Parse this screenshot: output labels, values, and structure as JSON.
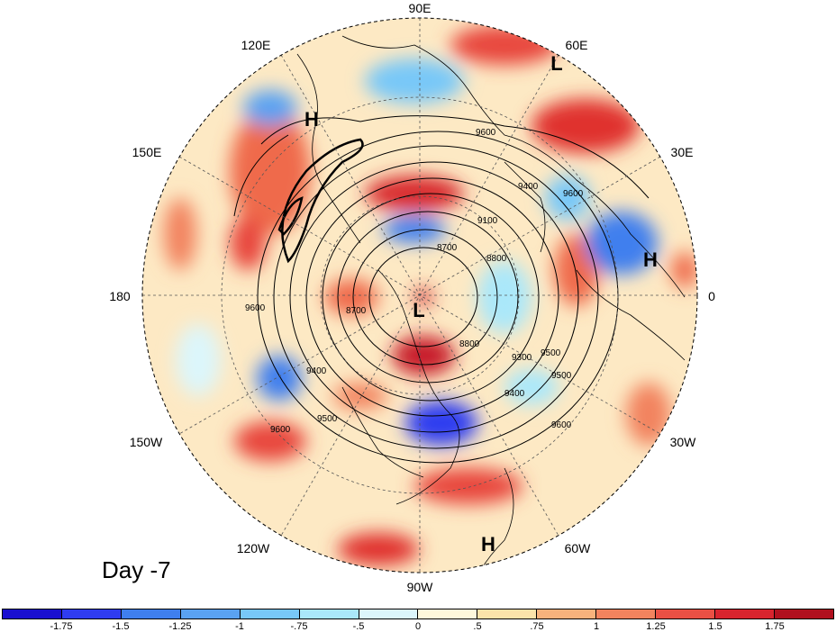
{
  "map": {
    "projection": "north polar stereographic",
    "longitude_labels": [
      "90E",
      "60E",
      "30E",
      "0",
      "30W",
      "60W",
      "90W",
      "120W",
      "150W",
      "180",
      "150E",
      "120E"
    ],
    "pressure_labels": [
      {
        "text": "H",
        "region": "Siberia / East Asia"
      },
      {
        "text": "L",
        "region": "Central Asia"
      },
      {
        "text": "H",
        "region": "Europe"
      },
      {
        "text": "L",
        "region": "Pole"
      },
      {
        "text": "H",
        "region": "Central Atlantic"
      }
    ],
    "contour_labels": [
      "9600",
      "9400",
      "9600",
      "9100",
      "8700",
      "8800",
      "9300",
      "9500",
      "9600",
      "9600",
      "9400",
      "9500",
      "9600",
      "8700",
      "8800",
      "9400",
      "9500"
    ],
    "contour_values": [
      8700,
      8800,
      9100,
      9300,
      9400,
      9500,
      9600
    ]
  },
  "day_label": "Day -7",
  "colorbar": {
    "colors": [
      "#1a0fd0",
      "#2f3cf0",
      "#3f7fee",
      "#5aa2f2",
      "#78c8f8",
      "#aae8fa",
      "#dcf6fb",
      "#fdf8dc",
      "#fbe3aa",
      "#f7b27c",
      "#f2835e",
      "#ea5044",
      "#d8242e",
      "#b0101e"
    ],
    "tick_labels": [
      "-1.75",
      "-1.5",
      "-1.25",
      "-1",
      "-.75",
      "-.5",
      "0",
      ".5",
      ".75",
      "1",
      "1.25",
      "1.5",
      "1.75"
    ]
  }
}
